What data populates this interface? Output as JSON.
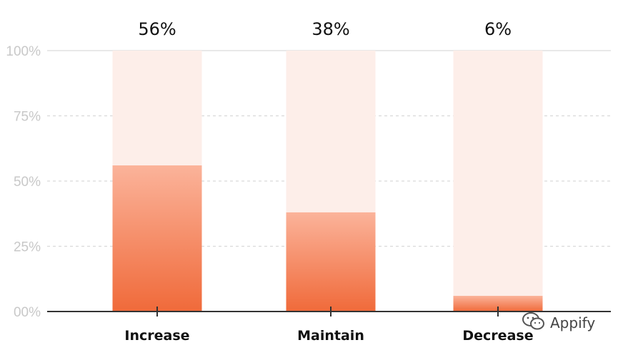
{
  "chart_data": {
    "type": "bar",
    "categories": [
      "Increase",
      "Maintain",
      "Decrease"
    ],
    "values": [
      56,
      38,
      6
    ],
    "value_labels": [
      "56%",
      "38%",
      "6%"
    ],
    "y_ticks": [
      0,
      25,
      50,
      75,
      100
    ],
    "y_tick_labels": [
      "00%",
      "25%",
      "50%",
      "75%",
      "100%"
    ],
    "ylim": [
      0,
      100
    ],
    "title": "",
    "xlabel": "",
    "ylabel": "",
    "grid": "dashed horizontal",
    "colors": {
      "bar_top": "#fbb39a",
      "bar_bottom": "#f06a3a",
      "bar_track": "#fdeee9",
      "grid": "#d9d9d9",
      "axis": "#333333"
    }
  },
  "watermark": {
    "text": "Appify",
    "icon": "wechat-icon"
  }
}
